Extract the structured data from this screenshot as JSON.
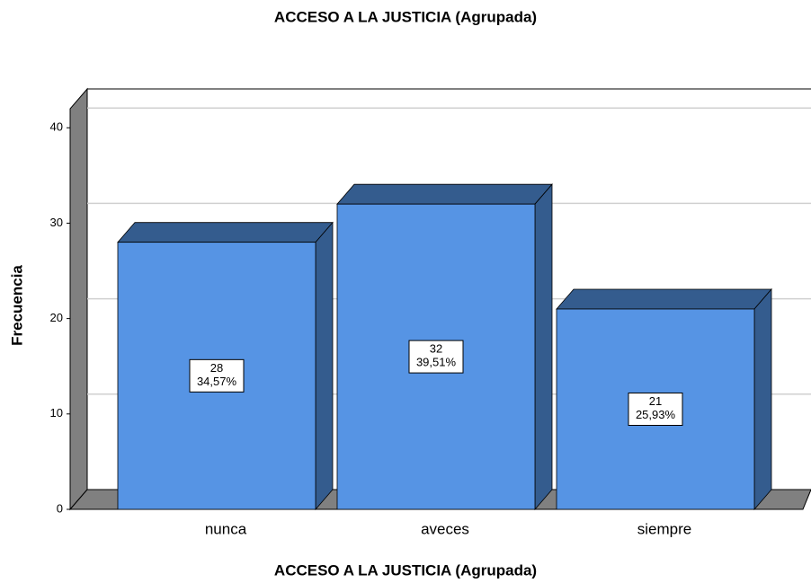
{
  "chart_data": {
    "type": "bar3d",
    "title": "ACCESO A LA JUSTICIA (Agrupada)",
    "x_label": "ACCESO A LA JUSTICIA (Agrupada)",
    "y_label": "Frecuencia",
    "categories": [
      "nunca",
      "aveces",
      "siempre"
    ],
    "values": [
      28,
      32,
      21
    ],
    "percentages": [
      34.57,
      39.51,
      25.93
    ],
    "percentage_labels": [
      "34,57%",
      "39,51%",
      "25,93%"
    ],
    "color": "#5694e4",
    "shade_color": "#345c8e",
    "ylim": [
      0,
      42
    ],
    "yticks": [
      0,
      10,
      20,
      30,
      40
    ],
    "grid": true
  }
}
